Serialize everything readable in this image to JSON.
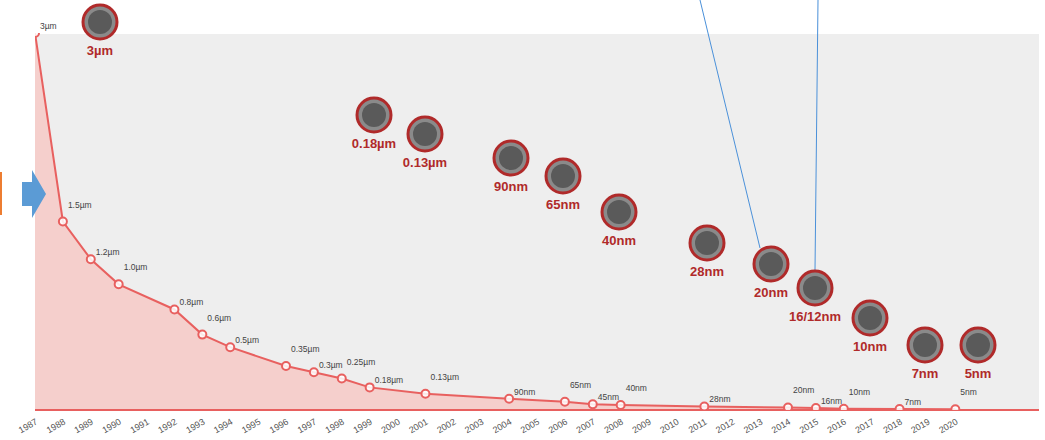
{
  "chart_data": {
    "type": "area",
    "x": [
      1987,
      1988,
      1989,
      1990,
      1992,
      1993,
      1994,
      1996,
      1997,
      1998,
      1999,
      2001,
      2004,
      2006,
      2007,
      2008,
      2011,
      2014,
      2015,
      2016,
      2018,
      2020
    ],
    "values": [
      3,
      1.5,
      1.2,
      1.0,
      0.8,
      0.6,
      0.5,
      0.35,
      0.3,
      0.25,
      0.18,
      0.13,
      0.09,
      0.065,
      0.045,
      0.04,
      0.028,
      0.02,
      0.016,
      0.01,
      0.007,
      0.005
    ],
    "value_labels": [
      "3µm",
      "1.5µm",
      "1.2µm",
      "1.0µm",
      "0.8µm",
      "0.6µm",
      "0.5µm",
      "0.35µm",
      "0.3µm",
      "0.25µm",
      "0.18µm",
      "0.13µm",
      "90nm",
      "65nm",
      "45nm",
      "40nm",
      "28nm",
      "20nm",
      "16nm",
      "10nm",
      "7nm",
      "5nm"
    ],
    "xlim": [
      1987,
      2023
    ],
    "xticks": [
      1987,
      1988,
      1989,
      1990,
      1991,
      1992,
      1993,
      1994,
      1995,
      1996,
      1997,
      1998,
      1999,
      2000,
      2001,
      2002,
      2003,
      2004,
      2005,
      2006,
      2007,
      2008,
      2009,
      2010,
      2011,
      2012,
      2013,
      2014,
      2015,
      2016,
      2017,
      2018,
      2019,
      2020
    ],
    "ylim": [
      0,
      3
    ],
    "yticks": [
      0,
      0.5,
      1,
      1.5,
      2,
      2.5,
      3
    ],
    "grid": true,
    "tick_labels": "x",
    "data_labels": true,
    "marker": "circle",
    "color": "#e8605f",
    "annotations": [
      "3µm",
      "0.18µm",
      "0.13µm",
      "90nm",
      "65nm",
      "40nm",
      "28nm",
      "20nm",
      "16/12nm",
      "10nm",
      "7nm",
      "5nm"
    ]
  }
}
